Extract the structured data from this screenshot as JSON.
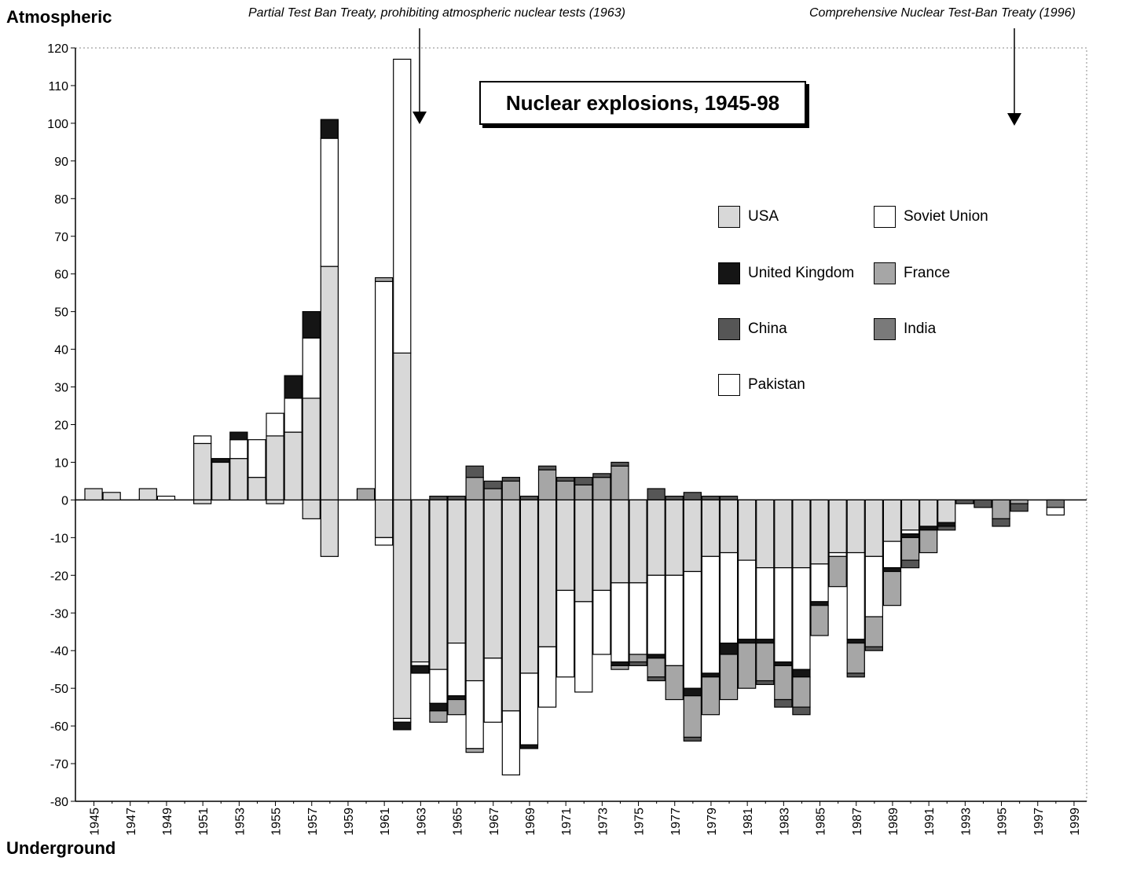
{
  "labels": {
    "top": "Atmospheric",
    "bottom": "Underground",
    "annotation_left": "Partial Test Ban Treaty, prohibiting atmospheric nuclear tests (1963)",
    "annotation_right": "Comprehensive Nuclear Test-Ban Treaty (1996)"
  },
  "colors": {
    "USA": "#d8d8d8",
    "Soviet Union": "#ffffff",
    "United Kingdom": "#151515",
    "France": "#a6a6a6",
    "China": "#565656",
    "India": "#7a7a7a",
    "Pakistan": "#ffffff"
  },
  "chart_data": {
    "type": "bar",
    "stacked": "diverging",
    "title": "Nuclear explosions, 1945-98",
    "ylim": [
      -80,
      120
    ],
    "yticks": [
      120,
      110,
      100,
      90,
      80,
      70,
      60,
      50,
      40,
      30,
      20,
      10,
      0,
      -10,
      -20,
      -30,
      -40,
      -50,
      -60,
      -70,
      -80
    ],
    "xtick_labels": [
      "1945",
      "1947",
      "1949",
      "1951",
      "1953",
      "1955",
      "1957",
      "1959",
      "1961",
      "1963",
      "1965",
      "1967",
      "1969",
      "1971",
      "1973",
      "1975",
      "1977",
      "1979",
      "1981",
      "1983",
      "1985",
      "1987",
      "1989",
      "1991",
      "1993",
      "1995",
      "1997",
      "1999"
    ],
    "legend": [
      "USA",
      "Soviet Union",
      "United Kingdom",
      "France",
      "China",
      "India",
      "Pakistan"
    ],
    "atmospheric": [
      {
        "year": 1945,
        "USA": 3
      },
      {
        "year": 1946,
        "USA": 2
      },
      {
        "year": 1948,
        "USA": 3
      },
      {
        "year": 1949,
        "Soviet Union": 1
      },
      {
        "year": 1951,
        "USA": 15,
        "Soviet Union": 2
      },
      {
        "year": 1952,
        "USA": 10,
        "United Kingdom": 1
      },
      {
        "year": 1953,
        "USA": 11,
        "Soviet Union": 5,
        "United Kingdom": 2
      },
      {
        "year": 1954,
        "USA": 6,
        "Soviet Union": 10
      },
      {
        "year": 1955,
        "USA": 17,
        "Soviet Union": 6
      },
      {
        "year": 1956,
        "USA": 18,
        "Soviet Union": 9,
        "United Kingdom": 6
      },
      {
        "year": 1957,
        "USA": 27,
        "Soviet Union": 16,
        "United Kingdom": 7
      },
      {
        "year": 1958,
        "USA": 62,
        "Soviet Union": 34,
        "United Kingdom": 5
      },
      {
        "year": 1960,
        "France": 3
      },
      {
        "year": 1961,
        "Soviet Union": 58,
        "France": 1
      },
      {
        "year": 1962,
        "USA": 39,
        "Soviet Union": 78
      },
      {
        "year": 1963
      },
      {
        "year": 1964,
        "China": 1
      },
      {
        "year": 1965,
        "China": 1
      },
      {
        "year": 1966,
        "France": 6,
        "China": 3
      },
      {
        "year": 1967,
        "France": 3,
        "China": 2
      },
      {
        "year": 1968,
        "France": 5,
        "China": 1
      },
      {
        "year": 1969,
        "China": 1
      },
      {
        "year": 1970,
        "France": 8,
        "China": 1
      },
      {
        "year": 1971,
        "France": 5,
        "China": 1
      },
      {
        "year": 1972,
        "France": 4,
        "China": 2
      },
      {
        "year": 1973,
        "France": 6,
        "China": 1
      },
      {
        "year": 1974,
        "France": 9,
        "China": 1
      },
      {
        "year": 1976,
        "China": 3
      },
      {
        "year": 1977,
        "China": 1
      },
      {
        "year": 1978,
        "China": 2
      },
      {
        "year": 1979,
        "China": 1
      },
      {
        "year": 1980,
        "China": 1
      }
    ],
    "underground": [
      {
        "year": 1951,
        "USA": 1
      },
      {
        "year": 1955,
        "USA": 1
      },
      {
        "year": 1957,
        "USA": 5
      },
      {
        "year": 1958,
        "USA": 15
      },
      {
        "year": 1961,
        "USA": 10,
        "Soviet Union": 2
      },
      {
        "year": 1962,
        "USA": 58,
        "Soviet Union": 1,
        "United Kingdom": 2
      },
      {
        "year": 1963,
        "USA": 43,
        "Soviet Union": 1,
        "United Kingdom": 2
      },
      {
        "year": 1964,
        "USA": 45,
        "Soviet Union": 9,
        "United Kingdom": 2,
        "France": 3
      },
      {
        "year": 1965,
        "USA": 38,
        "Soviet Union": 14,
        "United Kingdom": 1,
        "France": 4
      },
      {
        "year": 1966,
        "USA": 48,
        "Soviet Union": 18,
        "France": 1
      },
      {
        "year": 1967,
        "USA": 42,
        "Soviet Union": 17
      },
      {
        "year": 1968,
        "USA": 56,
        "Soviet Union": 17
      },
      {
        "year": 1969,
        "USA": 46,
        "Soviet Union": 19,
        "United Kingdom": 1
      },
      {
        "year": 1970,
        "USA": 39,
        "Soviet Union": 16
      },
      {
        "year": 1971,
        "USA": 24,
        "Soviet Union": 23
      },
      {
        "year": 1972,
        "USA": 27,
        "Soviet Union": 24
      },
      {
        "year": 1973,
        "USA": 24,
        "Soviet Union": 17
      },
      {
        "year": 1974,
        "USA": 22,
        "Soviet Union": 21,
        "United Kingdom": 1,
        "France": 1
      },
      {
        "year": 1975,
        "USA": 22,
        "Soviet Union": 19,
        "France": 2,
        "China": 1
      },
      {
        "year": 1976,
        "USA": 20,
        "Soviet Union": 21,
        "United Kingdom": 1,
        "France": 5,
        "China": 1
      },
      {
        "year": 1977,
        "USA": 20,
        "Soviet Union": 24,
        "France": 9
      },
      {
        "year": 1978,
        "USA": 19,
        "Soviet Union": 31,
        "United Kingdom": 2,
        "France": 11,
        "China": 1
      },
      {
        "year": 1979,
        "USA": 15,
        "Soviet Union": 31,
        "United Kingdom": 1,
        "France": 10
      },
      {
        "year": 1980,
        "USA": 14,
        "Soviet Union": 24,
        "United Kingdom": 3,
        "France": 12
      },
      {
        "year": 1981,
        "USA": 16,
        "Soviet Union": 21,
        "United Kingdom": 1,
        "France": 12
      },
      {
        "year": 1982,
        "USA": 18,
        "Soviet Union": 19,
        "United Kingdom": 1,
        "France": 10,
        "China": 1
      },
      {
        "year": 1983,
        "USA": 18,
        "Soviet Union": 25,
        "United Kingdom": 1,
        "France": 9,
        "China": 2
      },
      {
        "year": 1984,
        "USA": 18,
        "Soviet Union": 27,
        "United Kingdom": 2,
        "France": 8,
        "China": 2
      },
      {
        "year": 1985,
        "USA": 17,
        "Soviet Union": 10,
        "United Kingdom": 1,
        "France": 8
      },
      {
        "year": 1986,
        "USA": 14,
        "Soviet Union": 1,
        "France": 8
      },
      {
        "year": 1987,
        "USA": 14,
        "Soviet Union": 23,
        "United Kingdom": 1,
        "France": 8,
        "China": 1
      },
      {
        "year": 1988,
        "USA": 15,
        "Soviet Union": 16,
        "France": 8,
        "China": 1
      },
      {
        "year": 1989,
        "USA": 11,
        "Soviet Union": 7,
        "United Kingdom": 1,
        "France": 9
      },
      {
        "year": 1990,
        "USA": 8,
        "Soviet Union": 1,
        "United Kingdom": 1,
        "France": 6,
        "China": 2
      },
      {
        "year": 1991,
        "USA": 7,
        "United Kingdom": 1,
        "France": 6
      },
      {
        "year": 1992,
        "USA": 6,
        "United Kingdom": 1,
        "China": 1
      },
      {
        "year": 1993,
        "China": 1
      },
      {
        "year": 1994,
        "China": 2
      },
      {
        "year": 1995,
        "France": 5,
        "China": 2
      },
      {
        "year": 1996,
        "France": 1,
        "China": 2
      },
      {
        "year": 1998,
        "India": 2,
        "Pakistan": 2
      }
    ]
  }
}
